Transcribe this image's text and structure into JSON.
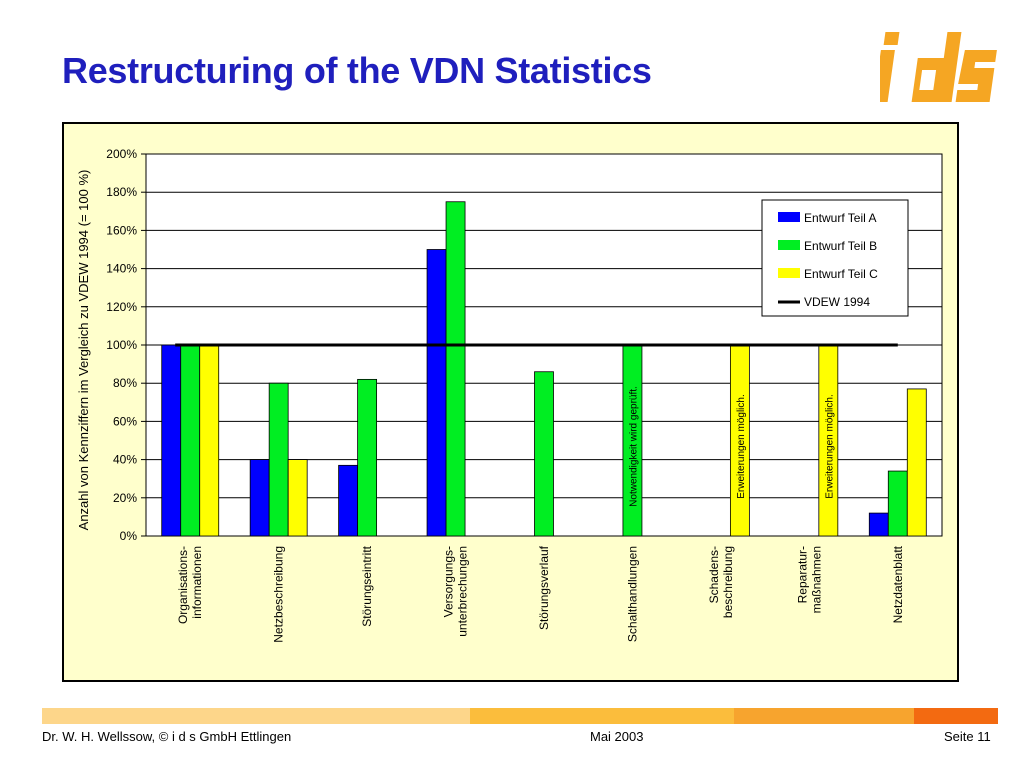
{
  "slide": {
    "title": "Restructuring of the VDN Statistics",
    "logo_text": "ids",
    "footer": {
      "left": "Dr. W. H. Wellssow, © i d s GmbH Ettlingen",
      "center": "Mai 2003",
      "right": "Seite 11"
    },
    "colors": {
      "title": "#1f1fbd",
      "logo": "#f5a623",
      "chart_background": "#ffffcc",
      "footer_bar": [
        "#fdd68a",
        "#fbbd3c",
        "#f7a42e",
        "#f36a11"
      ]
    }
  },
  "chart_data": {
    "type": "bar",
    "title": "",
    "xlabel": "",
    "ylabel": "Anzahl von Kennziffern im Vergleich zu VDEW 1994 (= 100 %)",
    "ylim": [
      0,
      200
    ],
    "yticks": [
      "0%",
      "20%",
      "40%",
      "60%",
      "80%",
      "100%",
      "120%",
      "140%",
      "160%",
      "180%",
      "200%"
    ],
    "grid": true,
    "legend_position": "top-right",
    "categories": [
      [
        "Organisations-",
        "informationen"
      ],
      [
        "Netzbeschreibung"
      ],
      [
        "Störungseintritt"
      ],
      [
        "Versorgungs-",
        "unterbrechungen"
      ],
      [
        "Störungsverlauf"
      ],
      [
        "Schalthandlungen"
      ],
      [
        "Schadens-",
        "beschreibung"
      ],
      [
        "Reparatur-",
        "maßnahmen"
      ],
      [
        "Netzdatenblatt"
      ]
    ],
    "series": [
      {
        "name": "Entwurf Teil A",
        "color": "#0000ff",
        "values": [
          100,
          40,
          37,
          150,
          null,
          null,
          null,
          null,
          12
        ]
      },
      {
        "name": "Entwurf Teil B",
        "color": "#00ee22",
        "values": [
          100,
          80,
          82,
          175,
          86,
          100,
          null,
          null,
          34
        ]
      },
      {
        "name": "Entwurf Teil C",
        "color": "#ffff00",
        "values": [
          100,
          40,
          null,
          null,
          null,
          null,
          100,
          100,
          77
        ]
      }
    ],
    "reference_line": {
      "name": "VDEW 1994",
      "value": 100,
      "color": "#000000"
    },
    "bar_annotations": [
      {
        "category_index": 5,
        "series_index": 1,
        "text": "Notwendigkeit wird geprüft."
      },
      {
        "category_index": 6,
        "series_index": 2,
        "text": "Erweiterungen möglich."
      },
      {
        "category_index": 7,
        "series_index": 2,
        "text": "Erweiterungen möglich."
      }
    ]
  }
}
